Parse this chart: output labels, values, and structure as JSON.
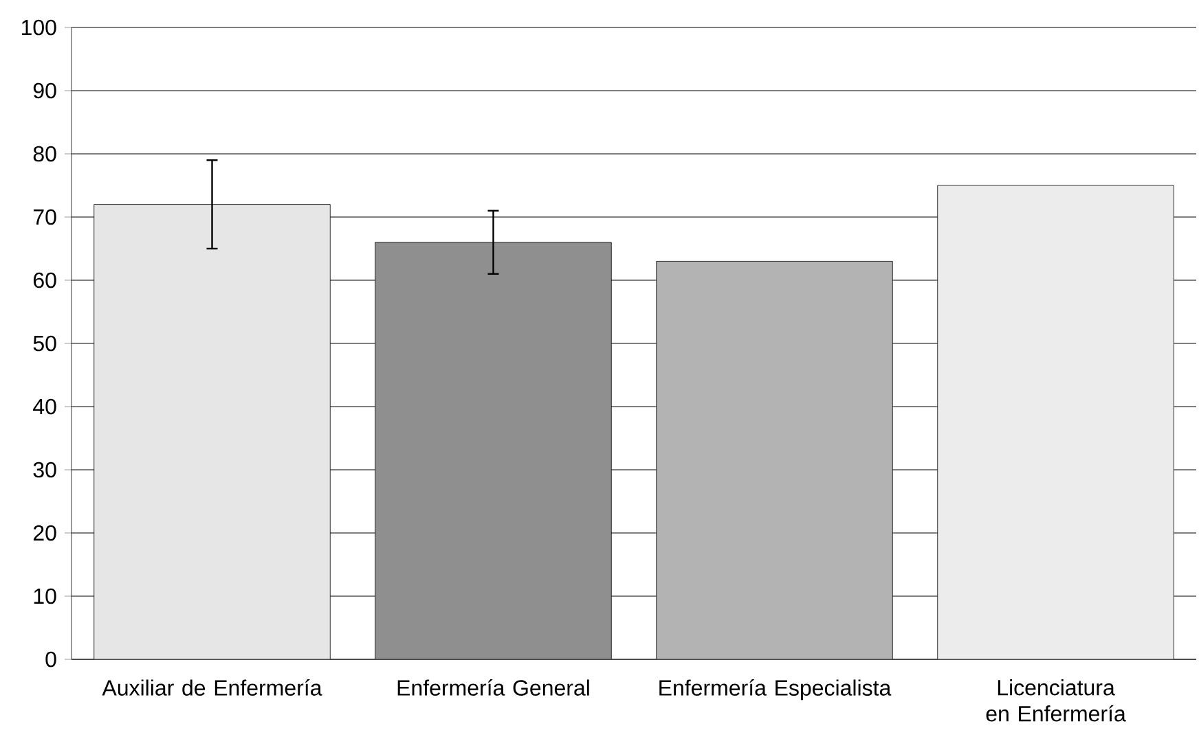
{
  "chart_data": {
    "type": "bar",
    "categories": [
      "Auxiliar de Enfermería",
      "Enfermería General",
      "Enfermería Especialista",
      "Licenciatura en Enfermería"
    ],
    "values": [
      72,
      66,
      63,
      75
    ],
    "colors": [
      "#e6e6e6",
      "#8f8f8f",
      "#b3b3b3",
      "#ececec"
    ],
    "errors": [
      [
        65,
        79
      ],
      [
        61,
        71
      ],
      null,
      null
    ],
    "ylim": [
      0,
      100
    ],
    "yticks": [
      0,
      10,
      20,
      30,
      40,
      50,
      60,
      70,
      80,
      90,
      100
    ],
    "grid": "y"
  }
}
